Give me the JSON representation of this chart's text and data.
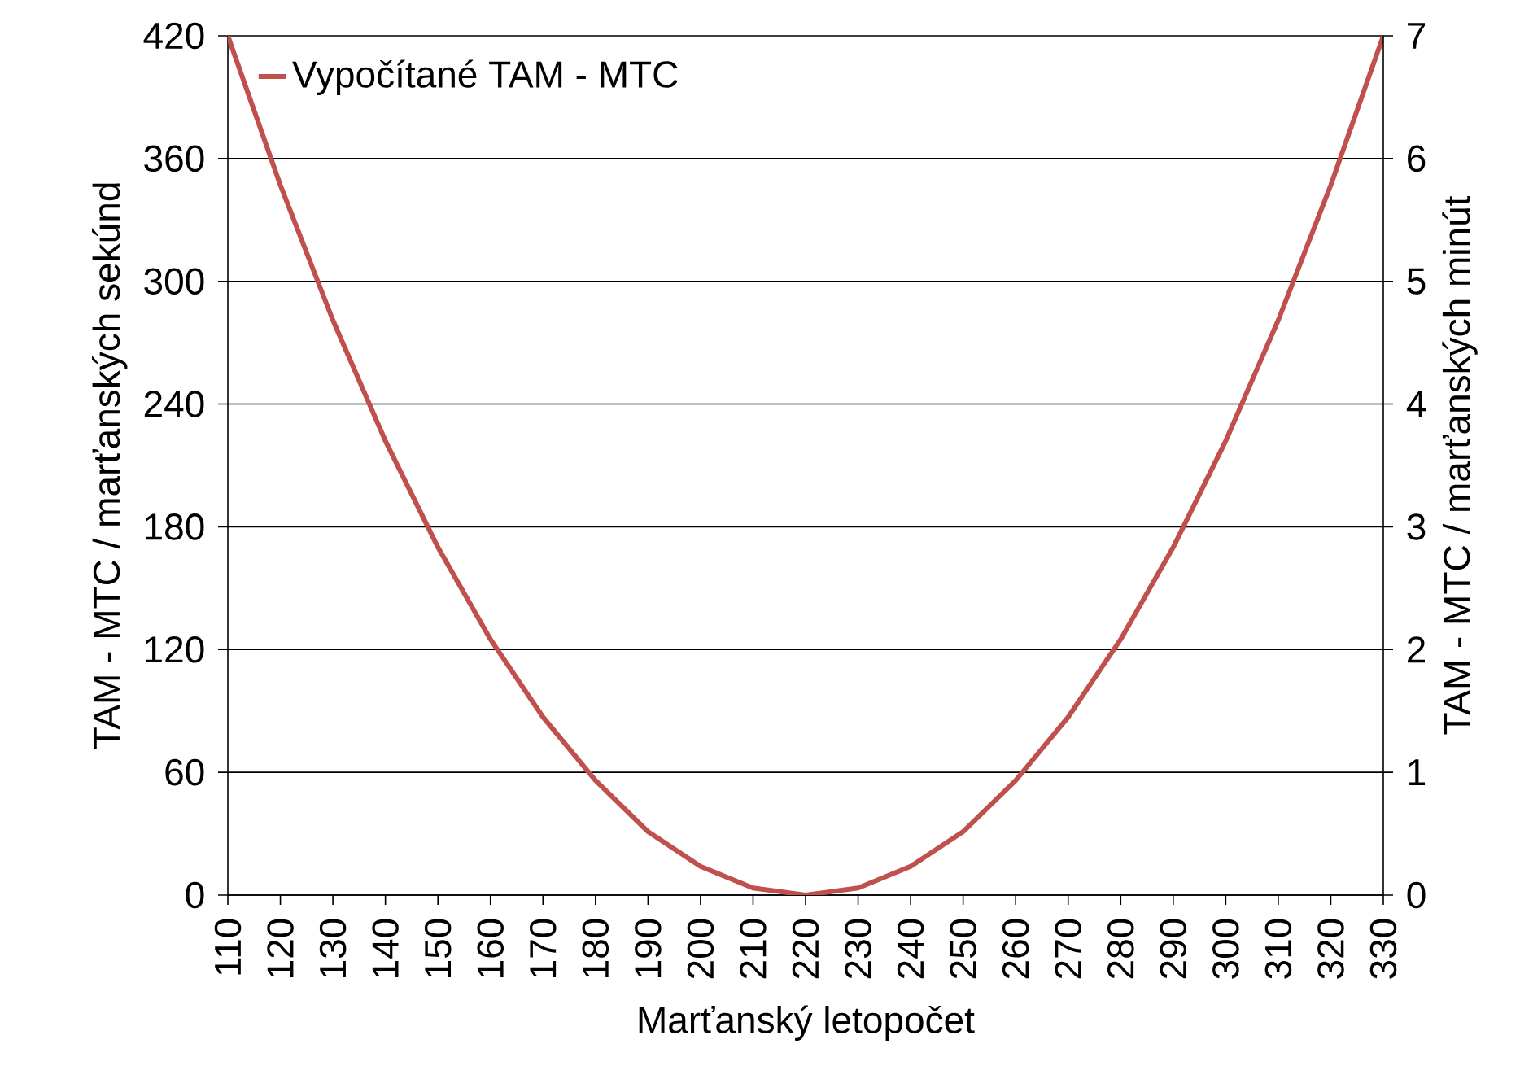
{
  "chart_data": {
    "type": "line",
    "xlabel": "Marťanský letopočet",
    "ylabel": "TAM - MTC / marťanských sekúnd",
    "y2label": "TAM - MTC / marťanských minút",
    "x": [
      110,
      120,
      130,
      140,
      150,
      160,
      170,
      180,
      190,
      200,
      210,
      220,
      230,
      240,
      250,
      260,
      270,
      280,
      290,
      300,
      310,
      320,
      330
    ],
    "series": [
      {
        "name": "Vypočítané TAM - MTC",
        "color": "#c0504d",
        "values": [
          420,
          347,
          281,
          222,
          170,
          125,
          87,
          56,
          31,
          14,
          3.5,
          0,
          3.5,
          14,
          31,
          56,
          87,
          125,
          170,
          222,
          281,
          347,
          420
        ]
      }
    ],
    "xlim": [
      110,
      330
    ],
    "xticks": [
      110,
      120,
      130,
      140,
      150,
      160,
      170,
      180,
      190,
      200,
      210,
      220,
      230,
      240,
      250,
      260,
      270,
      280,
      290,
      300,
      310,
      320,
      330
    ],
    "ylim": [
      0,
      420
    ],
    "yticks": [
      0,
      60,
      120,
      180,
      240,
      300,
      360,
      420
    ],
    "y2lim": [
      0,
      7
    ],
    "y2ticks": [
      0,
      1,
      2,
      3,
      4,
      5,
      6,
      7
    ],
    "grid": "y",
    "legend": "top left",
    "marker": "none",
    "line_style": "solid"
  }
}
